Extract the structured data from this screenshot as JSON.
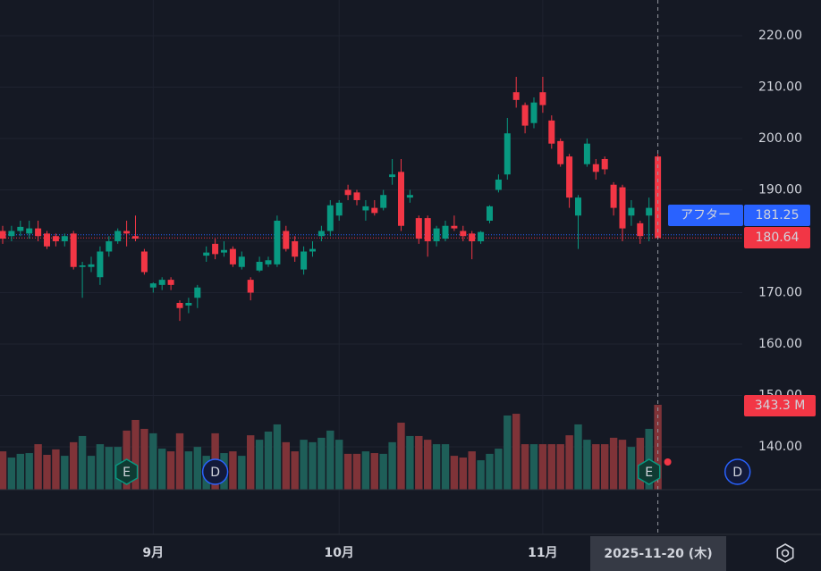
{
  "chart_data": {
    "type": "candlestick",
    "categories": [
      null,
      null,
      null,
      null,
      null,
      null,
      null,
      null,
      null,
      null,
      null,
      null,
      null,
      null,
      null,
      null,
      null,
      "9月",
      null,
      null,
      null,
      null,
      null,
      null,
      null,
      null,
      null,
      null,
      null,
      null,
      null,
      null,
      null,
      null,
      null,
      null,
      null,
      null,
      "10月",
      null,
      null,
      null,
      null,
      null,
      null,
      null,
      null,
      null,
      null,
      null,
      null,
      null,
      null,
      null,
      null,
      null,
      null,
      null,
      null,
      null,
      null,
      "11月",
      null,
      null,
      null,
      null,
      null,
      null,
      null,
      null,
      null,
      null,
      null,
      null,
      "2025-11-20 (木)"
    ],
    "open": [
      182,
      181,
      182,
      181.5,
      182.5,
      181.5,
      181,
      180,
      181.5,
      175,
      175,
      173,
      178,
      180,
      182,
      181,
      178,
      171,
      171.5,
      172.5,
      168,
      167.5,
      169,
      177.2,
      179.5,
      177.8,
      178.5,
      175,
      172.5,
      174.3,
      175.5,
      175.5,
      182,
      180,
      174.5,
      178,
      181,
      182,
      185,
      190,
      189.5,
      186,
      186.5,
      186.5,
      192.5,
      193.5,
      188.5,
      184.5,
      184.5,
      180,
      180.5,
      183,
      182,
      181.5,
      180,
      184,
      190,
      193,
      209,
      206.5,
      203,
      209,
      203.5,
      199.5,
      196.5,
      185,
      195,
      195,
      196,
      191,
      190.5,
      185,
      183.5,
      185,
      196.5
    ],
    "high": [
      183,
      183,
      184,
      184,
      184,
      182,
      181.5,
      181.5,
      182,
      176,
      177,
      179,
      181,
      182.5,
      184,
      185,
      178.5,
      172,
      173,
      173,
      168.5,
      169,
      171.5,
      179,
      180.5,
      180,
      179,
      178,
      173,
      177,
      177,
      185,
      183,
      181,
      179,
      180,
      183,
      188,
      188,
      191,
      190,
      188,
      188,
      190,
      196,
      196,
      190,
      185,
      185,
      183,
      184,
      185,
      183,
      182,
      182,
      187,
      193,
      204,
      212,
      207,
      208,
      212,
      204.5,
      200,
      197,
      189,
      200,
      196,
      196.5,
      191.5,
      191,
      188,
      184,
      188.5,
      197
    ],
    "low": [
      179.5,
      180,
      181,
      180.5,
      180,
      178.5,
      179,
      179,
      174.5,
      169,
      174,
      171.5,
      177,
      179.5,
      179,
      180,
      173.5,
      170,
      170.5,
      170.5,
      164.5,
      166,
      167,
      176,
      176.5,
      177,
      175,
      174.5,
      168.5,
      174,
      175,
      175,
      178,
      176,
      173.5,
      177,
      180,
      181,
      184,
      188,
      187,
      184,
      185,
      186,
      191,
      182,
      187.5,
      179.5,
      177,
      179,
      180,
      182,
      180,
      176.5,
      179.5,
      183.5,
      189.5,
      192,
      206,
      201,
      202,
      205,
      198,
      194.5,
      186.5,
      178.5,
      194.5,
      192,
      193,
      185,
      180,
      183,
      179.5,
      180,
      180.5
    ],
    "close": [
      180.5,
      182,
      182.8,
      182.5,
      181,
      179,
      180,
      181,
      175,
      175.3,
      175.5,
      178,
      180,
      182,
      181.5,
      180.5,
      174,
      171.8,
      172.5,
      171.5,
      167,
      168,
      171,
      177.8,
      177.5,
      178.3,
      175.5,
      177,
      170,
      176,
      176.3,
      184,
      178.5,
      177,
      178,
      178.5,
      182,
      187,
      187.5,
      189,
      188,
      186.8,
      185.5,
      189,
      193,
      183,
      189,
      180.5,
      180,
      182.5,
      183,
      182.5,
      181,
      180,
      181.8,
      186.8,
      192,
      201,
      207.5,
      202.5,
      207,
      206.5,
      199,
      195,
      188.5,
      188.5,
      199,
      193.5,
      194,
      186.5,
      182.5,
      186.5,
      181,
      186.5,
      180.64
    ],
    "up_color": "#089981",
    "down_color": "#f23645",
    "volume": {
      "values": [
        155,
        130,
        145,
        148,
        184,
        141,
        163,
        137,
        192,
        217,
        137,
        184,
        173,
        173,
        239,
        282,
        246,
        228,
        166,
        155,
        228,
        155,
        173,
        137,
        228,
        148,
        155,
        137,
        220,
        202,
        235,
        264,
        192,
        155,
        202,
        192,
        210,
        239,
        202,
        145,
        145,
        155,
        148,
        145,
        192,
        271,
        217,
        217,
        202,
        184,
        184,
        137,
        130,
        155,
        119,
        145,
        166,
        300,
        307,
        184,
        184,
        184,
        184,
        184,
        220,
        264,
        202,
        184,
        184,
        210,
        202,
        173,
        210,
        246,
        343.3
      ],
      "last_label": "343.3 M",
      "up_color": "#1e5e58",
      "down_color": "#7f3338"
    },
    "ylim": [
      130,
      226.95
    ],
    "yticks": [
      {
        "value": 140,
        "label": "140.00"
      },
      {
        "value": 150,
        "label": "150.00"
      },
      {
        "value": 160,
        "label": "160.00"
      },
      {
        "value": 170,
        "label": "170.00"
      },
      {
        "value": 180,
        "label": "180.00"
      },
      {
        "value": 190,
        "label": "190.00"
      },
      {
        "value": 200,
        "label": "200.00"
      },
      {
        "value": 210,
        "label": "210.00"
      },
      {
        "value": 220,
        "label": "220.00"
      }
    ],
    "after_hours": {
      "label": "アフター",
      "value": 181.25,
      "color": "#2962ff"
    },
    "last_price": {
      "value": 180.64,
      "color": "#f23645"
    },
    "events": [
      {
        "label": "E",
        "at": 14
      },
      {
        "label": "D",
        "at": 24
      },
      {
        "label": "E",
        "at": 73
      },
      {
        "label": "D",
        "at": 83
      }
    ],
    "grid": true
  }
}
